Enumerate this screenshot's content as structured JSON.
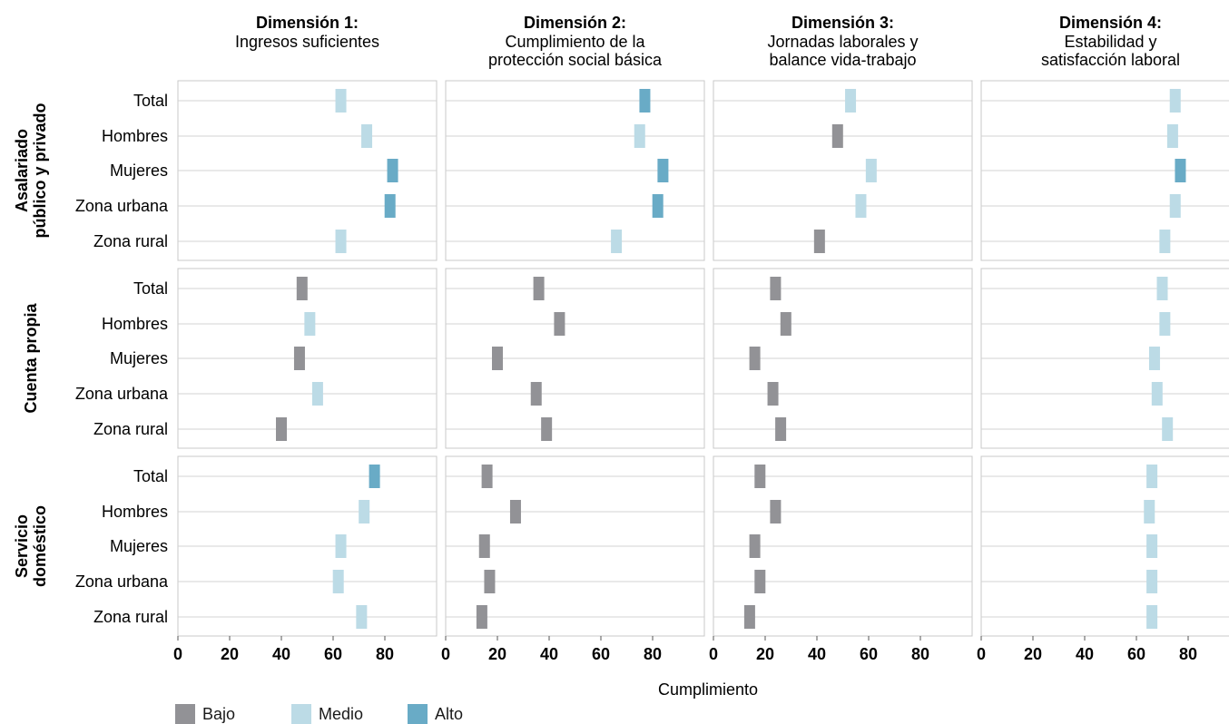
{
  "chart_data": {
    "type": "bar",
    "xlabel": "Cumplimiento",
    "xlim": [
      0,
      100
    ],
    "xticks": [
      0,
      20,
      40,
      60,
      80
    ],
    "dimensions": [
      {
        "title_bold": "Dimensión 1:",
        "title_lines": [
          "Ingresos suficientes"
        ]
      },
      {
        "title_bold": "Dimensión 2:",
        "title_lines": [
          "Cumplimiento de la",
          "protección social básica"
        ]
      },
      {
        "title_bold": "Dimensión 3:",
        "title_lines": [
          "Jornadas laborales y",
          "balance vida-trabajo"
        ]
      },
      {
        "title_bold": "Dimensión 4:",
        "title_lines": [
          "Estabilidad y",
          "satisfacción laboral"
        ]
      }
    ],
    "groups": [
      {
        "lines": [
          "Asalariado",
          "público y privado"
        ]
      },
      {
        "lines": [
          "Cuenta propia"
        ]
      },
      {
        "lines": [
          "Servicio",
          "doméstico"
        ]
      }
    ],
    "categories": [
      "Total",
      "Hombres",
      "Mujeres",
      "Zona urbana",
      "Zona rural"
    ],
    "levels": [
      {
        "key": "bajo",
        "label": "Bajo",
        "color": "#929296"
      },
      {
        "key": "medio",
        "label": "Medio",
        "color": "#bcdbe6"
      },
      {
        "key": "alto",
        "label": "Alto",
        "color": "#69abc6"
      }
    ],
    "values": [
      [
        [
          [
            63,
            "medio"
          ],
          [
            73,
            "medio"
          ],
          [
            83,
            "alto"
          ],
          [
            82,
            "alto"
          ],
          [
            63,
            "medio"
          ]
        ],
        [
          [
            77,
            "alto"
          ],
          [
            75,
            "medio"
          ],
          [
            84,
            "alto"
          ],
          [
            82,
            "alto"
          ],
          [
            66,
            "medio"
          ]
        ],
        [
          [
            53,
            "medio"
          ],
          [
            48,
            "bajo"
          ],
          [
            61,
            "medio"
          ],
          [
            57,
            "medio"
          ],
          [
            41,
            "bajo"
          ]
        ],
        [
          [
            75,
            "medio"
          ],
          [
            74,
            "medio"
          ],
          [
            77,
            "alto"
          ],
          [
            75,
            "medio"
          ],
          [
            71,
            "medio"
          ]
        ]
      ],
      [
        [
          [
            48,
            "bajo"
          ],
          [
            51,
            "medio"
          ],
          [
            47,
            "bajo"
          ],
          [
            54,
            "medio"
          ],
          [
            40,
            "bajo"
          ]
        ],
        [
          [
            36,
            "bajo"
          ],
          [
            44,
            "bajo"
          ],
          [
            20,
            "bajo"
          ],
          [
            35,
            "bajo"
          ],
          [
            39,
            "bajo"
          ]
        ],
        [
          [
            24,
            "bajo"
          ],
          [
            28,
            "bajo"
          ],
          [
            16,
            "bajo"
          ],
          [
            23,
            "bajo"
          ],
          [
            26,
            "bajo"
          ]
        ],
        [
          [
            70,
            "medio"
          ],
          [
            71,
            "medio"
          ],
          [
            67,
            "medio"
          ],
          [
            68,
            "medio"
          ],
          [
            72,
            "medio"
          ]
        ]
      ],
      [
        [
          [
            76,
            "alto"
          ],
          [
            72,
            "medio"
          ],
          [
            63,
            "medio"
          ],
          [
            62,
            "medio"
          ],
          [
            71,
            "medio"
          ]
        ],
        [
          [
            16,
            "bajo"
          ],
          [
            27,
            "bajo"
          ],
          [
            15,
            "bajo"
          ],
          [
            17,
            "bajo"
          ],
          [
            14,
            "bajo"
          ]
        ],
        [
          [
            18,
            "bajo"
          ],
          [
            24,
            "bajo"
          ],
          [
            16,
            "bajo"
          ],
          [
            18,
            "bajo"
          ],
          [
            14,
            "bajo"
          ]
        ],
        [
          [
            66,
            "medio"
          ],
          [
            65,
            "medio"
          ],
          [
            66,
            "medio"
          ],
          [
            66,
            "medio"
          ],
          [
            66,
            "medio"
          ]
        ]
      ]
    ]
  }
}
